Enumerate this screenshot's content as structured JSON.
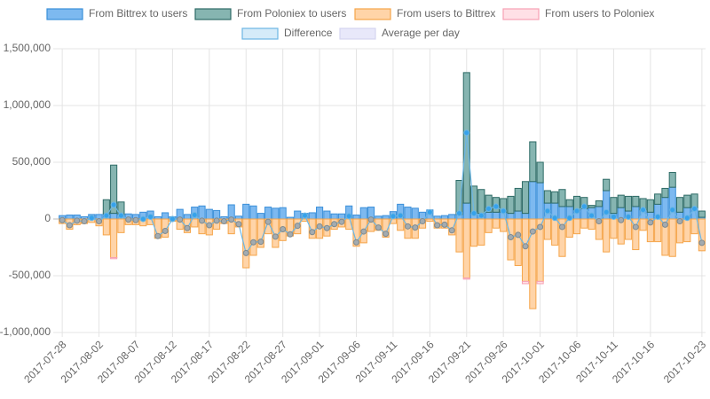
{
  "chart_data": {
    "type": "stacked-bar-line",
    "categories": [
      "2017-07-28",
      null,
      null,
      null,
      null,
      "2017-08-02",
      null,
      null,
      null,
      null,
      "2017-08-07",
      null,
      null,
      null,
      null,
      "2017-08-12",
      null,
      null,
      null,
      null,
      "2017-08-17",
      null,
      null,
      null,
      null,
      "2017-08-22",
      null,
      null,
      null,
      null,
      "2017-08-27",
      null,
      null,
      null,
      null,
      "2017-09-01",
      null,
      null,
      null,
      null,
      "2017-09-06",
      null,
      null,
      null,
      null,
      "2017-09-11",
      null,
      null,
      null,
      null,
      "2017-09-16",
      null,
      null,
      null,
      null,
      "2017-09-21",
      null,
      null,
      null,
      null,
      "2017-09-26",
      null,
      null,
      null,
      null,
      "2017-10-01",
      null,
      null,
      null,
      null,
      "2017-10-06",
      null,
      null,
      null,
      null,
      "2017-10-11",
      null,
      null,
      null,
      null,
      "2017-10-16",
      null,
      null,
      null,
      null,
      null,
      null,
      "2017-10-23"
    ],
    "series": [
      {
        "name": "From Bittrex to users",
        "kind": "bar",
        "color": "#7db9f0",
        "border_color": "#3a8fd9",
        "values": [
          30000,
          35000,
          35000,
          20000,
          40000,
          40000,
          45000,
          50000,
          40000,
          45000,
          40000,
          60000,
          70000,
          20000,
          55000,
          20000,
          85000,
          40000,
          105000,
          115000,
          85000,
          75000,
          20000,
          125000,
          25000,
          130000,
          115000,
          50000,
          105000,
          95000,
          100000,
          15000,
          70000,
          50000,
          55000,
          105000,
          70000,
          45000,
          45000,
          115000,
          35000,
          100000,
          105000,
          25000,
          30000,
          65000,
          130000,
          105000,
          95000,
          60000,
          80000,
          25000,
          30000,
          40000,
          40000,
          140000,
          50000,
          50000,
          60000,
          60000,
          60000,
          50000,
          70000,
          50000,
          330000,
          320000,
          140000,
          140000,
          110000,
          110000,
          80000,
          90000,
          100000,
          110000,
          250000,
          50000,
          100000,
          70000,
          110000,
          80000,
          60000,
          130000,
          190000,
          280000,
          60000,
          100000,
          100000,
          15000
        ]
      },
      {
        "name": "From Poloniex to users",
        "kind": "bar",
        "color": "#86b5b1",
        "border_color": "#2e6b66",
        "values": [
          0,
          0,
          0,
          0,
          0,
          0,
          125000,
          425000,
          110000,
          0,
          0,
          0,
          0,
          0,
          0,
          0,
          0,
          0,
          0,
          0,
          0,
          0,
          0,
          0,
          0,
          0,
          0,
          0,
          0,
          0,
          0,
          0,
          0,
          0,
          0,
          0,
          0,
          0,
          0,
          0,
          0,
          0,
          0,
          0,
          0,
          0,
          0,
          0,
          0,
          0,
          0,
          0,
          0,
          0,
          300000,
          1150000,
          240000,
          210000,
          150000,
          130000,
          120000,
          150000,
          200000,
          280000,
          350000,
          180000,
          110000,
          100000,
          150000,
          60000,
          120000,
          100000,
          20000,
          50000,
          100000,
          140000,
          110000,
          130000,
          90000,
          100000,
          110000,
          90000,
          80000,
          130000,
          130000,
          110000,
          120000,
          55000
        ]
      },
      {
        "name": "From users to Bittrex",
        "kind": "bar",
        "color": "#ffd4a8",
        "border_color": "#f5a54a",
        "values": [
          -40000,
          -90000,
          -50000,
          -40000,
          -30000,
          -60000,
          -140000,
          -340000,
          -120000,
          -50000,
          -50000,
          -60000,
          -50000,
          -170000,
          -160000,
          -20000,
          -90000,
          -120000,
          -70000,
          -130000,
          -140000,
          -90000,
          -40000,
          -130000,
          -70000,
          -430000,
          -320000,
          -250000,
          -130000,
          -250000,
          -190000,
          -150000,
          -130000,
          -20000,
          -170000,
          -170000,
          -150000,
          -90000,
          -70000,
          -90000,
          -240000,
          -210000,
          -110000,
          -100000,
          -160000,
          -40000,
          -100000,
          -170000,
          -170000,
          -80000,
          -20000,
          -80000,
          -80000,
          -140000,
          -290000,
          -520000,
          -240000,
          -230000,
          -120000,
          -80000,
          -110000,
          -360000,
          -410000,
          -550000,
          -790000,
          -550000,
          -180000,
          -230000,
          -330000,
          -160000,
          -130000,
          -80000,
          -90000,
          -180000,
          -290000,
          -170000,
          -220000,
          -180000,
          -270000,
          -100000,
          -200000,
          -200000,
          -320000,
          -330000,
          -210000,
          -200000,
          -130000,
          -280000
        ]
      },
      {
        "name": "From users to Poloniex",
        "kind": "bar",
        "color": "#ffe0e6",
        "border_color": "#f7a1b3",
        "values": [
          0,
          0,
          0,
          0,
          0,
          0,
          0,
          -10000,
          0,
          0,
          0,
          0,
          0,
          0,
          0,
          0,
          0,
          0,
          0,
          0,
          0,
          0,
          0,
          0,
          0,
          0,
          0,
          0,
          0,
          0,
          0,
          0,
          0,
          0,
          0,
          0,
          0,
          0,
          0,
          0,
          0,
          0,
          0,
          0,
          0,
          0,
          0,
          0,
          0,
          0,
          0,
          0,
          0,
          0,
          0,
          -10000,
          0,
          0,
          0,
          0,
          0,
          0,
          0,
          -20000,
          0,
          -20000,
          0,
          0,
          0,
          0,
          0,
          0,
          0,
          0,
          0,
          0,
          0,
          0,
          0,
          0,
          0,
          0,
          0,
          0,
          0,
          0,
          0,
          0
        ]
      },
      {
        "name": "Difference",
        "kind": "line",
        "color": "#d5ebf9",
        "border_color": "#6cb6e4",
        "positive_color": "#36a2eb",
        "negative_color": "#a3abb0",
        "values": [
          -10000,
          -55000,
          -15000,
          -20000,
          10000,
          -20000,
          30000,
          125000,
          30000,
          -5000,
          -10000,
          0,
          20000,
          -150000,
          -105000,
          0,
          -5000,
          -80000,
          35000,
          -15000,
          -55000,
          -15000,
          -20000,
          -5000,
          -45000,
          -300000,
          -205000,
          -200000,
          -25000,
          -155000,
          -90000,
          -135000,
          -60000,
          30000,
          -115000,
          -65000,
          -80000,
          -45000,
          -25000,
          25000,
          -205000,
          -110000,
          -5000,
          -75000,
          -130000,
          25000,
          30000,
          -65000,
          -75000,
          -20000,
          60000,
          -55000,
          -50000,
          -100000,
          50000,
          760000,
          50000,
          30000,
          90000,
          110000,
          70000,
          -160000,
          -140000,
          -240000,
          -110000,
          -70000,
          70000,
          10000,
          -70000,
          10000,
          70000,
          110000,
          30000,
          -20000,
          60000,
          20000,
          -10000,
          20000,
          -70000,
          80000,
          -30000,
          20000,
          -50000,
          80000,
          -20000,
          10000,
          90000,
          -210000
        ]
      },
      {
        "name": "Average per day",
        "kind": "legend",
        "color": "#e8e8fa",
        "border_color": "#d5d5ef"
      }
    ],
    "ylim": [
      -1000000,
      1500000
    ],
    "yticks": [
      {
        "value": -1000000,
        "label": "-1,000,000"
      },
      {
        "value": -500000,
        "label": "-500,000"
      },
      0,
      {
        "value": 500000,
        "label": "500,000"
      },
      {
        "value": 1000000,
        "label": "1,000,000"
      },
      {
        "value": 1500000,
        "label": "1,500,000"
      }
    ],
    "grid": true
  }
}
